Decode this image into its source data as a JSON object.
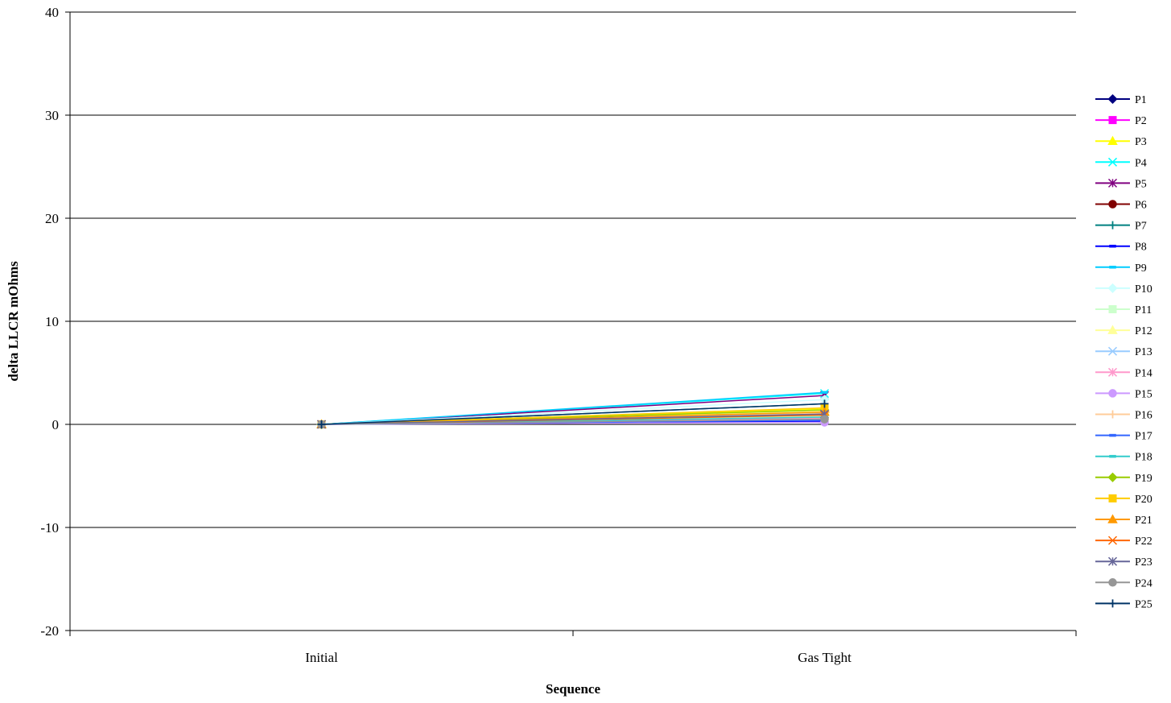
{
  "chart_data": {
    "type": "line",
    "title": "",
    "xlabel": "Sequence",
    "ylabel": "delta LLCR mOhms",
    "categories": [
      "Initial",
      "Gas Tight"
    ],
    "ylim": [
      -20,
      40
    ],
    "yticks": [
      -20,
      -10,
      0,
      10,
      20,
      30,
      40
    ],
    "grid": true,
    "legend_position": "right",
    "series": [
      {
        "name": "P1",
        "color": "#000080",
        "marker": "diamond",
        "values": [
          0,
          1.2
        ]
      },
      {
        "name": "P2",
        "color": "#FF00FF",
        "marker": "square",
        "values": [
          0,
          0.9
        ]
      },
      {
        "name": "P3",
        "color": "#FFFF00",
        "marker": "triangle",
        "values": [
          0,
          1.5
        ]
      },
      {
        "name": "P4",
        "color": "#00FFFF",
        "marker": "x",
        "values": [
          0,
          3.0
        ]
      },
      {
        "name": "P5",
        "color": "#800080",
        "marker": "star",
        "values": [
          0,
          2.8
        ]
      },
      {
        "name": "P6",
        "color": "#800000",
        "marker": "circle",
        "values": [
          0,
          1.0
        ]
      },
      {
        "name": "P7",
        "color": "#008080",
        "marker": "plus",
        "values": [
          0,
          2.0
        ]
      },
      {
        "name": "P8",
        "color": "#0000FF",
        "marker": "dash",
        "values": [
          0,
          0.3
        ]
      },
      {
        "name": "P9",
        "color": "#00CCFF",
        "marker": "dash",
        "values": [
          0,
          3.1
        ]
      },
      {
        "name": "P10",
        "color": "#CCFFFF",
        "marker": "diamond",
        "values": [
          0,
          2.4
        ]
      },
      {
        "name": "P11",
        "color": "#CCFFCC",
        "marker": "square",
        "values": [
          0,
          0.8
        ]
      },
      {
        "name": "P12",
        "color": "#FFFF99",
        "marker": "triangle",
        "values": [
          0,
          1.3
        ]
      },
      {
        "name": "P13",
        "color": "#99CCFF",
        "marker": "x",
        "values": [
          0,
          0.5
        ]
      },
      {
        "name": "P14",
        "color": "#FF99CC",
        "marker": "star",
        "values": [
          0,
          0.6
        ]
      },
      {
        "name": "P15",
        "color": "#CC99FF",
        "marker": "circle",
        "values": [
          0,
          0.2
        ]
      },
      {
        "name": "P16",
        "color": "#FFCC99",
        "marker": "plus",
        "values": [
          0,
          1.1
        ]
      },
      {
        "name": "P17",
        "color": "#3366FF",
        "marker": "dash",
        "values": [
          0,
          0.4
        ]
      },
      {
        "name": "P18",
        "color": "#33CCCC",
        "marker": "dash",
        "values": [
          0,
          0.7
        ]
      },
      {
        "name": "P19",
        "color": "#99CC00",
        "marker": "diamond",
        "values": [
          0,
          1.4
        ]
      },
      {
        "name": "P20",
        "color": "#FFCC00",
        "marker": "square",
        "values": [
          0,
          1.6
        ]
      },
      {
        "name": "P21",
        "color": "#FF9900",
        "marker": "triangle",
        "values": [
          0,
          1.2
        ]
      },
      {
        "name": "P22",
        "color": "#FF6600",
        "marker": "x",
        "values": [
          0,
          0.9
        ]
      },
      {
        "name": "P23",
        "color": "#666699",
        "marker": "star",
        "values": [
          0,
          1.0
        ]
      },
      {
        "name": "P24",
        "color": "#969696",
        "marker": "circle",
        "values": [
          0,
          0.5
        ]
      },
      {
        "name": "P25",
        "color": "#003366",
        "marker": "plus",
        "values": [
          0,
          2.0
        ]
      }
    ]
  }
}
